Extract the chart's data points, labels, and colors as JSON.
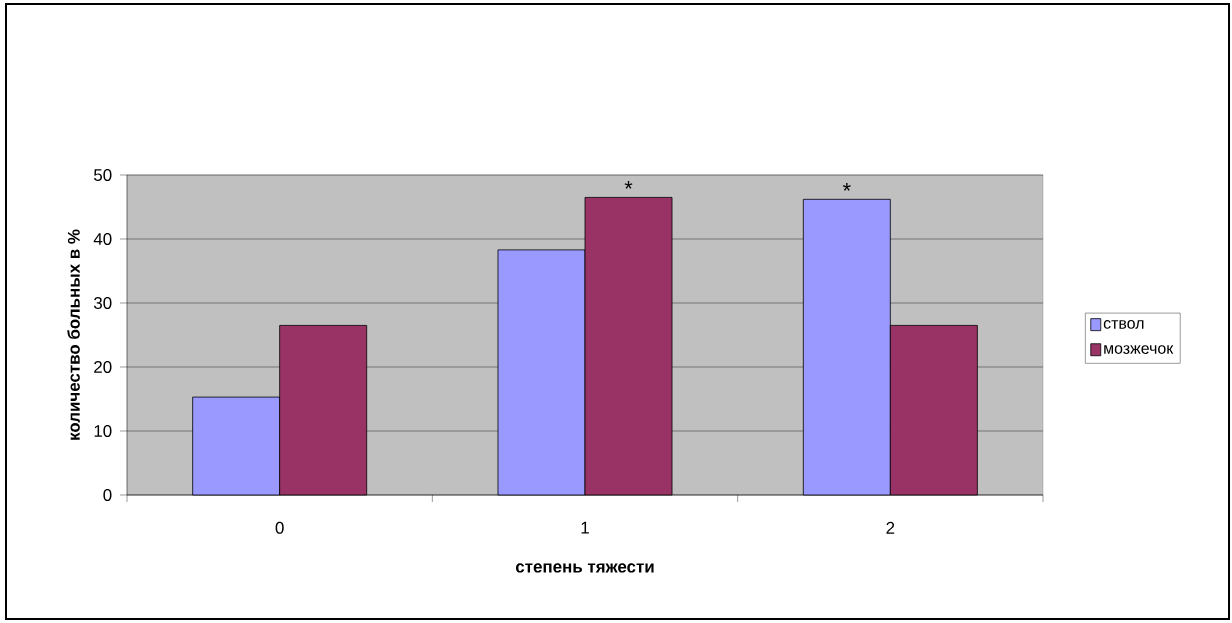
{
  "chart_data": {
    "type": "bar",
    "xlabel": "степень тяжести",
    "ylabel": "количество больных в %",
    "categories": [
      "0",
      "1",
      "2"
    ],
    "series": [
      {
        "name": "ствол",
        "color": "#9999ff",
        "values": [
          15.3,
          38.3,
          46.2
        ]
      },
      {
        "name": "мозжечок",
        "color": "#993366",
        "values": [
          26.5,
          46.5,
          26.5
        ]
      }
    ],
    "ylim": [
      0,
      50
    ],
    "yticks": [
      0,
      10,
      20,
      30,
      40,
      50
    ],
    "grid": "y",
    "legend": "right",
    "annotations": [
      {
        "text": "*",
        "x": "1",
        "y": 46.5
      },
      {
        "text": "*",
        "x": "2",
        "y": 46.2
      }
    ]
  }
}
